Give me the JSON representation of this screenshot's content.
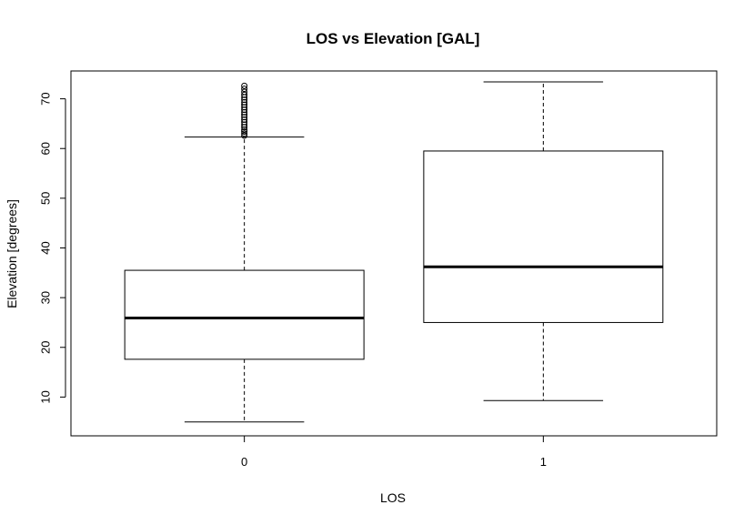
{
  "chart_data": {
    "type": "boxplot",
    "title": "LOS vs Elevation [GAL]",
    "xlabel": "LOS",
    "ylabel": "Elevation [degrees]",
    "categories": [
      "0",
      "1"
    ],
    "ylim": [
      2.2,
      75.6
    ],
    "yticks": [
      "10",
      "20",
      "30",
      "40",
      "50",
      "60",
      "70"
    ],
    "boxes": [
      {
        "category": "0",
        "whisker_low": 5.0,
        "q1": 17.6,
        "median": 25.9,
        "q3": 35.5,
        "whisker_high": 62.3,
        "outliers": [
          62.6,
          63.0,
          63.4,
          63.8,
          64.3,
          64.8,
          65.3,
          65.8,
          66.3,
          66.8,
          67.3,
          67.8,
          68.3,
          68.8,
          69.3,
          69.8,
          70.3,
          70.8,
          71.4,
          72.0,
          72.6
        ]
      },
      {
        "category": "1",
        "whisker_low": 9.3,
        "q1": 25.0,
        "median": 36.2,
        "q3": 59.5,
        "whisker_high": 73.4,
        "outliers": []
      }
    ],
    "grid": false,
    "legend": "none"
  }
}
